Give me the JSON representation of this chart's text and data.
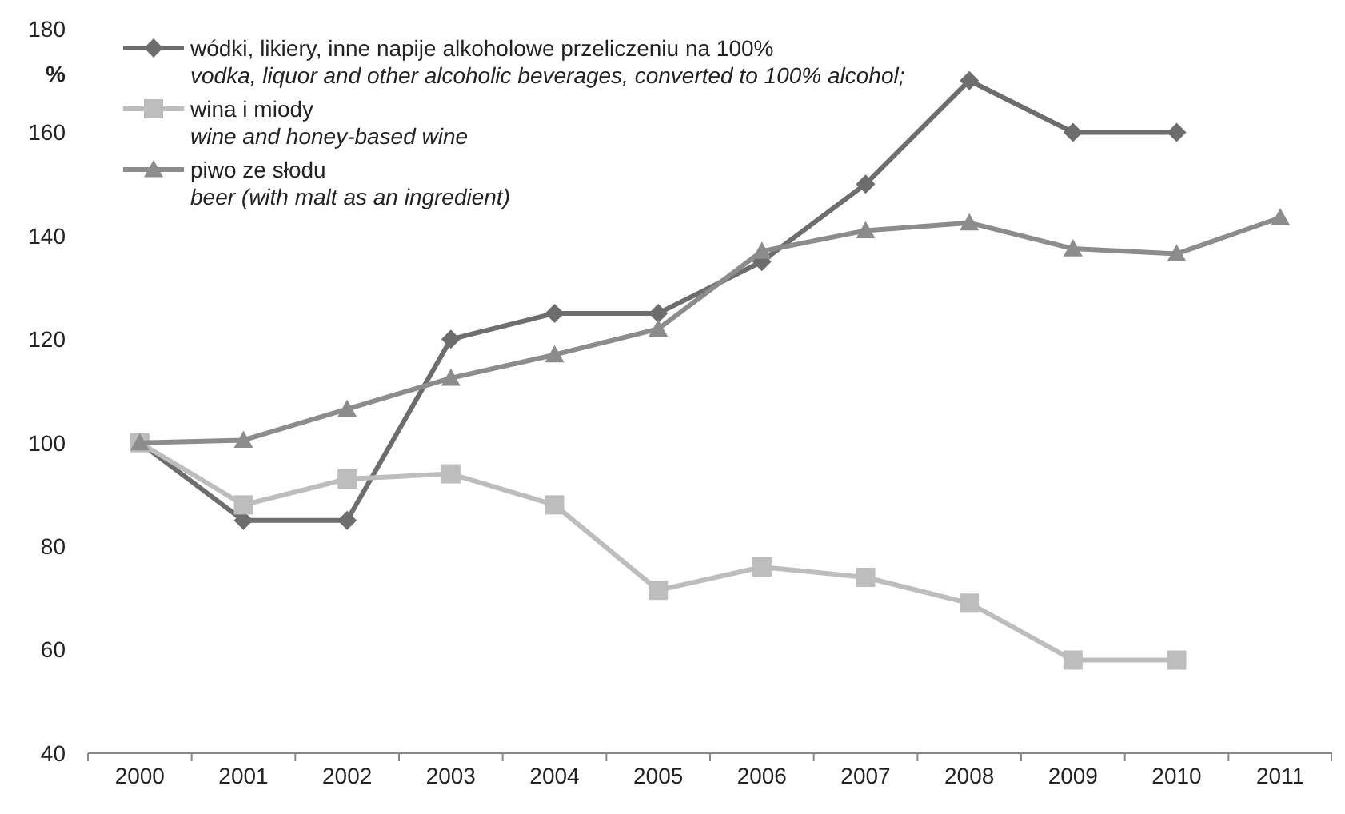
{
  "chart_data": {
    "type": "line",
    "ylabel": "%",
    "categories": [
      "2000",
      "2001",
      "2002",
      "2003",
      "2004",
      "2005",
      "2006",
      "2007",
      "2008",
      "2009",
      "2010",
      "2011"
    ],
    "ylim": [
      40,
      180
    ],
    "yticks": [
      40,
      60,
      80,
      100,
      120,
      140,
      160,
      180
    ],
    "grid": false,
    "legend": "top left",
    "line_style": "solid",
    "series": [
      {
        "name": "wódki, likiery, inne napije alkoholowe  przeliczeniu na 100%\nvodka, liquor and other alcoholic beverages, converted to 100% alcohol;",
        "color": "#6d6d6d",
        "marker": "diamond",
        "values": [
          100,
          85,
          85,
          120,
          125,
          125,
          135,
          150,
          170,
          160,
          160,
          null
        ]
      },
      {
        "name": "wina i miody\nwine and honey-based wine",
        "color": "#bdbdbd",
        "marker": "square",
        "values": [
          100,
          88,
          93,
          94,
          88,
          71.5,
          76,
          74,
          69,
          58,
          58,
          null
        ]
      },
      {
        "name": "piwo ze słodu\nbeer (with malt as an ingredient)",
        "color": "#8c8c8c",
        "marker": "triangle",
        "values": [
          100,
          100.5,
          106.5,
          112.5,
          117,
          122,
          137,
          141,
          142.5,
          137.5,
          136.5,
          143.5
        ]
      }
    ]
  }
}
